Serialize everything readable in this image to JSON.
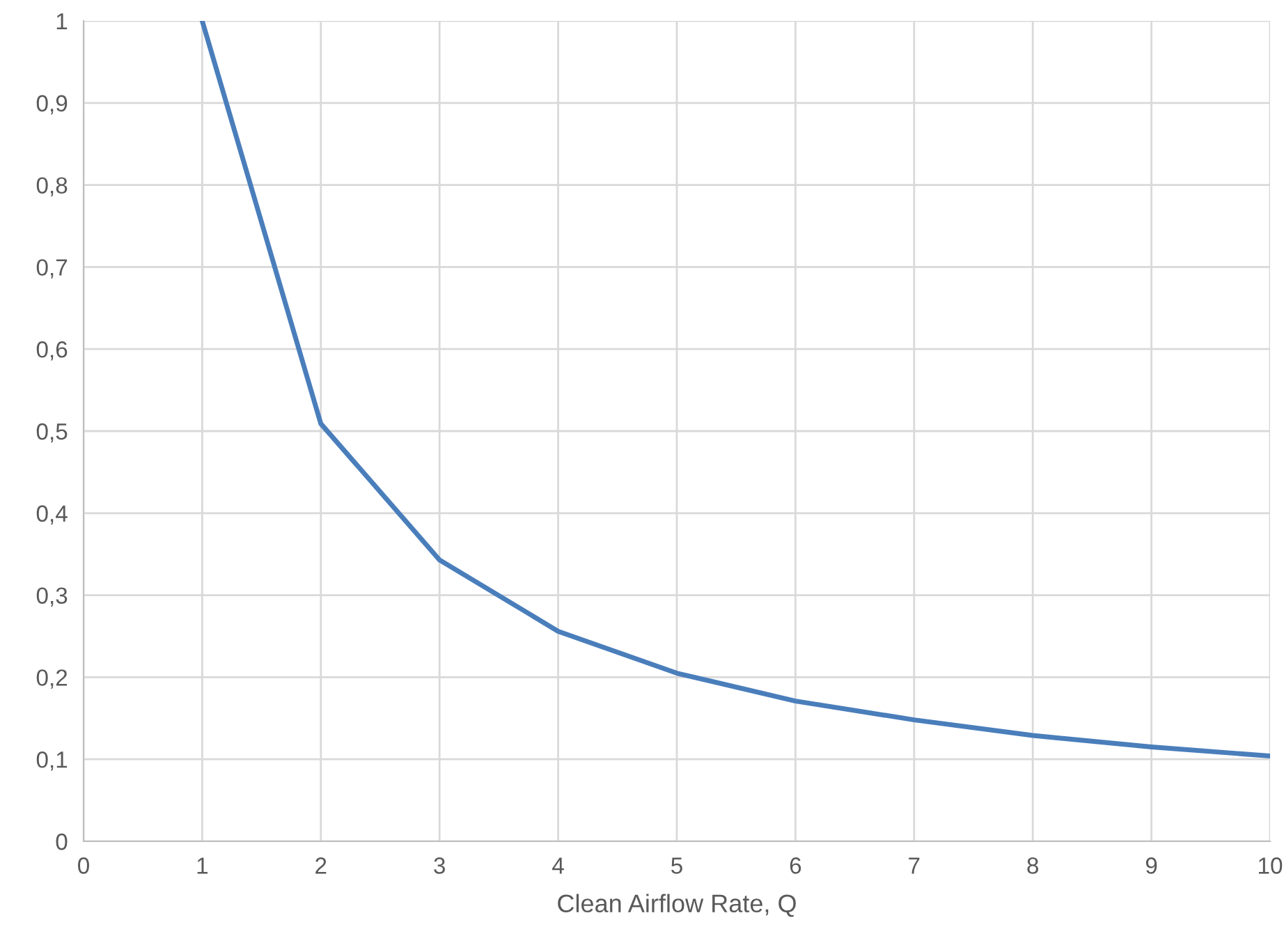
{
  "chart_data": {
    "type": "line",
    "xlabel": "Clean Airflow Rate, Q",
    "x": [
      1,
      2,
      3,
      4,
      5,
      6,
      7,
      8,
      9,
      10
    ],
    "series": [
      {
        "color": "#4a7ebb",
        "values": [
          1.0,
          0.509,
          0.343,
          0.256,
          0.205,
          0.171,
          0.148,
          0.129,
          0.115,
          0.104
        ]
      }
    ],
    "xlim": [
      0,
      10
    ],
    "xticks": [
      0,
      1,
      2,
      3,
      4,
      5,
      6,
      7,
      8,
      9,
      10
    ],
    "ylim": [
      0,
      1
    ],
    "yticks": [
      0,
      {
        "value": 0.1,
        "label": "0,1"
      },
      {
        "value": 0.2,
        "label": "0,2"
      },
      {
        "value": 0.3,
        "label": "0,3"
      },
      {
        "value": 0.4,
        "label": "0,4"
      },
      {
        "value": 0.5,
        "label": "0,5"
      },
      {
        "value": 0.6,
        "label": "0,6"
      },
      {
        "value": 0.7,
        "label": "0,7"
      },
      {
        "value": 0.8,
        "label": "0,8"
      },
      {
        "value": 0.9,
        "label": "0,9"
      },
      1
    ],
    "grid": true,
    "marker": "none",
    "line_style": "solid"
  }
}
